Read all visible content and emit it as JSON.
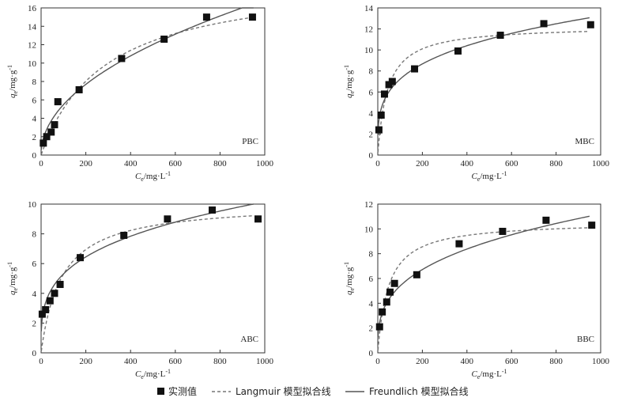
{
  "chart_data": [
    {
      "type": "scatter",
      "panel_label": "PBC",
      "xlabel_main": "C",
      "xlabel_sub": "e",
      "xlabel_unit": "/mg·L",
      "xlabel_exp": "-1",
      "ylabel_main": "q",
      "ylabel_sub": "e",
      "ylabel_unit": "/mg·g",
      "ylabel_exp": "-1",
      "xlim": [
        0,
        1000
      ],
      "ylim": [
        0,
        16
      ],
      "xticks": [
        0,
        200,
        400,
        600,
        800,
        1000
      ],
      "yticks": [
        0,
        2,
        4,
        6,
        8,
        10,
        12,
        14,
        16
      ],
      "measured": {
        "x": [
          10,
          25,
          45,
          60,
          75,
          170,
          360,
          550,
          740,
          945
        ],
        "y": [
          1.3,
          2.0,
          2.5,
          3.3,
          5.8,
          7.1,
          10.5,
          12.6,
          15.0,
          15.0
        ]
      },
      "langmuir": {
        "qm": 19.5,
        "kl": 0.0035
      },
      "freundlich": {
        "kf": 0.58,
        "n": 2.05
      }
    },
    {
      "type": "scatter",
      "panel_label": "MBC",
      "xlabel_main": "C",
      "xlabel_sub": "e",
      "xlabel_unit": "/mg·L",
      "xlabel_exp": "-1",
      "ylabel_main": "q",
      "ylabel_sub": "e",
      "ylabel_unit": "/mg·g",
      "ylabel_exp": "-1",
      "xlim": [
        0,
        1000
      ],
      "ylim": [
        0,
        14
      ],
      "xticks": [
        0,
        200,
        400,
        600,
        800,
        1000
      ],
      "yticks": [
        0,
        2,
        4,
        6,
        8,
        10,
        12,
        14
      ],
      "measured": {
        "x": [
          5,
          15,
          30,
          50,
          65,
          165,
          360,
          550,
          745,
          955
        ],
        "y": [
          2.4,
          3.8,
          5.8,
          6.7,
          7.0,
          8.2,
          9.9,
          11.4,
          12.5,
          12.4
        ]
      },
      "langmuir": {
        "qm": 12.3,
        "kl": 0.023
      },
      "freundlich": {
        "kf": 2.15,
        "n": 3.8
      }
    },
    {
      "type": "scatter",
      "panel_label": "ABC",
      "xlabel_main": "C",
      "xlabel_sub": "e",
      "xlabel_unit": "/mg·L",
      "xlabel_exp": "-1",
      "ylabel_main": "q",
      "ylabel_sub": "e",
      "ylabel_unit": "/mg·g",
      "ylabel_exp": "-1",
      "xlim": [
        0,
        1000
      ],
      "ylim": [
        0,
        10
      ],
      "xticks": [
        0,
        200,
        400,
        600,
        800,
        1000
      ],
      "yticks": [
        0,
        2,
        4,
        6,
        8,
        10
      ],
      "measured": {
        "x": [
          5,
          20,
          40,
          60,
          85,
          175,
          370,
          565,
          765,
          970
        ],
        "y": [
          2.6,
          2.9,
          3.5,
          4.0,
          4.6,
          6.4,
          7.9,
          9.0,
          9.6,
          9.0
        ]
      },
      "langmuir": {
        "qm": 10.1,
        "kl": 0.011
      },
      "freundlich": {
        "kf": 1.45,
        "n": 3.55
      }
    },
    {
      "type": "scatter",
      "panel_label": "BBC",
      "xlabel_main": "C",
      "xlabel_sub": "e",
      "xlabel_unit": "/mg·L",
      "xlabel_exp": "-1",
      "ylabel_main": "q",
      "ylabel_sub": "e",
      "ylabel_unit": "/mg·g",
      "ylabel_exp": "-1",
      "xlim": [
        0,
        1000
      ],
      "ylim": [
        0,
        12
      ],
      "xticks": [
        0,
        200,
        400,
        600,
        800,
        1000
      ],
      "yticks": [
        0,
        2,
        4,
        6,
        8,
        10,
        12
      ],
      "measured": {
        "x": [
          8,
          20,
          40,
          55,
          75,
          175,
          365,
          560,
          755,
          960
        ],
        "y": [
          2.1,
          3.3,
          4.1,
          4.9,
          5.6,
          6.3,
          8.8,
          9.8,
          10.7,
          10.3
        ]
      },
      "langmuir": {
        "qm": 10.6,
        "kl": 0.021
      },
      "freundlich": {
        "kf": 1.25,
        "n": 3.15
      }
    }
  ],
  "legend": {
    "measured": "实测值",
    "langmuir": "Langmuir 模型拟合线",
    "freundlich": "Freundlich 模型拟合线"
  }
}
